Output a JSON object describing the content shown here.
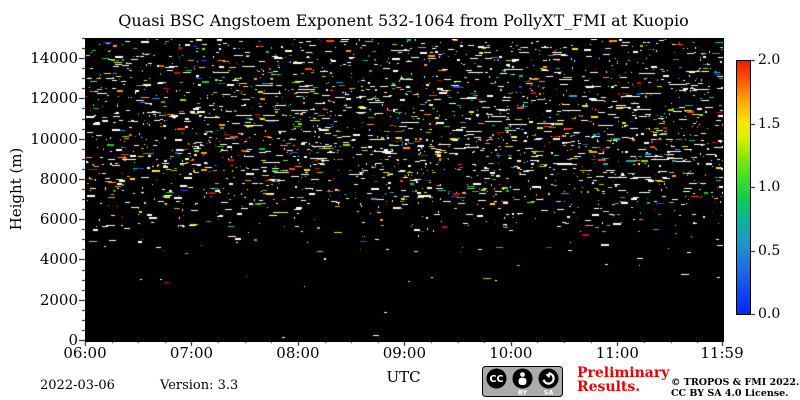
{
  "chart_data": {
    "type": "heatmap",
    "title": "Quasi BSC Angstoem Exponent 532-1064 from PollyXT_FMI at Kuopio",
    "xlabel": "UTC",
    "ylabel": "Height (m)",
    "x_ticks": [
      {
        "label": "06:00",
        "hours": 6.0
      },
      {
        "label": "07:00",
        "hours": 7.0
      },
      {
        "label": "08:00",
        "hours": 8.0
      },
      {
        "label": "09:00",
        "hours": 9.0
      },
      {
        "label": "10:00",
        "hours": 10.0
      },
      {
        "label": "11:00",
        "hours": 11.0
      },
      {
        "label": "11:59",
        "hours": 11.9833
      }
    ],
    "xlim_hours": [
      6.0,
      11.9833
    ],
    "x_minor_step_hours": 0.25,
    "y_ticks": [
      0,
      2000,
      4000,
      6000,
      8000,
      10000,
      12000,
      14000
    ],
    "y_minor_step": 500,
    "ylim": [
      0,
      15000
    ],
    "plot_background": "#000000",
    "grid": false,
    "colorbar": {
      "range": [
        0.0,
        2.0
      ],
      "ticks": [
        {
          "label": "2.0",
          "value": 2.0
        },
        {
          "label": "1.5",
          "value": 1.5
        },
        {
          "label": "1.0",
          "value": 1.0
        },
        {
          "label": "0.5",
          "value": 0.5
        },
        {
          "label": "0.0",
          "value": 0.0
        }
      ],
      "colormap_stops": [
        {
          "p": 0.0,
          "c": "#0b24ff"
        },
        {
          "p": 0.08,
          "c": "#1440f4"
        },
        {
          "p": 0.18,
          "c": "#1e6ee0"
        },
        {
          "p": 0.28,
          "c": "#1e96c8"
        },
        {
          "p": 0.38,
          "c": "#0cb894"
        },
        {
          "p": 0.46,
          "c": "#14cc50"
        },
        {
          "p": 0.54,
          "c": "#46dc28"
        },
        {
          "p": 0.62,
          "c": "#8ce800"
        },
        {
          "p": 0.7,
          "c": "#d8f000"
        },
        {
          "p": 0.76,
          "c": "#ffe400"
        },
        {
          "p": 0.84,
          "c": "#ffaa00"
        },
        {
          "p": 0.92,
          "c": "#ff5a00"
        },
        {
          "p": 1.0,
          "c": "#f51800"
        }
      ]
    },
    "speckle_field": {
      "description": "sparse noisy retrieval speckles over black background, dense 6000-15000 m, empty below ~5500 m",
      "seed": 42,
      "dash_max_w": 8,
      "tall_frac": 0.22,
      "bands": [
        {
          "y0": 0,
          "y1": 15,
          "count": 180
        },
        {
          "y0": 15,
          "y1": 45,
          "count": 380
        },
        {
          "y0": 45,
          "y1": 95,
          "count": 700
        },
        {
          "y0": 95,
          "y1": 135,
          "count": 700
        },
        {
          "y0": 135,
          "y1": 165,
          "count": 380
        },
        {
          "y0": 165,
          "y1": 190,
          "count": 150
        },
        {
          "y0": 190,
          "y1": 215,
          "count": 50
        },
        {
          "y0": 215,
          "y1": 245,
          "count": 15
        },
        {
          "y0": 245,
          "y1": 302,
          "count": 4
        }
      ],
      "colors": [
        {
          "c": "#ffffff",
          "w": 0.5
        },
        {
          "c": "#fff8d8",
          "w": 0.05
        },
        {
          "c": "#ffe400",
          "w": 0.09
        },
        {
          "c": "#ffa000",
          "w": 0.08
        },
        {
          "c": "#ff4c00",
          "w": 0.05
        },
        {
          "c": "#e60000",
          "w": 0.04
        },
        {
          "c": "#96e000",
          "w": 0.05
        },
        {
          "c": "#1ecc28",
          "w": 0.05
        },
        {
          "c": "#00c89b",
          "w": 0.04
        },
        {
          "c": "#28a0dc",
          "w": 0.03
        },
        {
          "c": "#1e50f0",
          "w": 0.02
        }
      ],
      "streaks": {
        "count": 90,
        "y0": 10,
        "y1": 140,
        "wmin": 6,
        "wmax": 20,
        "color": "#ffffff"
      }
    }
  },
  "footer": {
    "date": "2022-03-06",
    "version_label": "Version: 3.3",
    "preliminary_line1": "Preliminary",
    "preliminary_line2": "Results.",
    "preliminary_color": "#e60000",
    "license_line1": "© TROPOS & FMI 2022.",
    "license_line2": "CC BY SA 4.0 License."
  },
  "cc_badge": {
    "cc_label": "CC",
    "by_label": "BY",
    "sa_label": "SA",
    "background": "#ababab"
  }
}
